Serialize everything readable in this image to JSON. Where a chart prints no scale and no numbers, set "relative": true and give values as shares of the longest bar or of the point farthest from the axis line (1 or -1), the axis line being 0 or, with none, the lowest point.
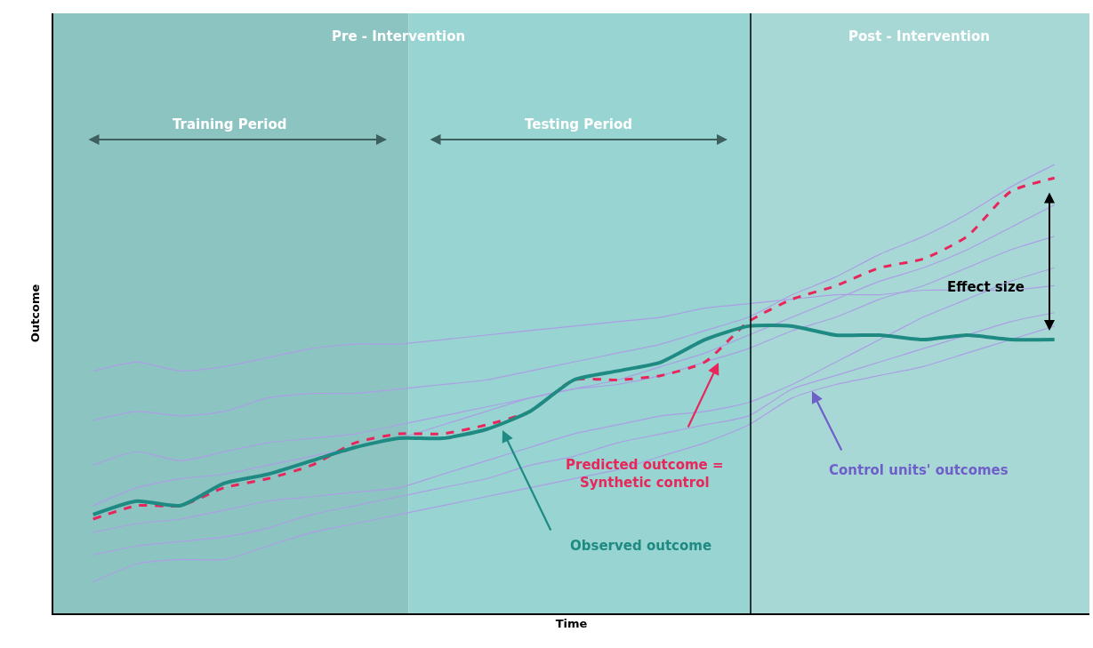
{
  "chart_data": {
    "type": "line",
    "relative": true,
    "xlabel": "Time",
    "ylabel": "Outcome",
    "categories": [
      null,
      null,
      null,
      null,
      null,
      null,
      null,
      null,
      null,
      null,
      null,
      null,
      null,
      null,
      null,
      null,
      null,
      null,
      null,
      null,
      null,
      null,
      null
    ],
    "series": [
      {
        "color": "#ab9fe4",
        "values": [
          0.54,
          0.56,
          0.54,
          0.55,
          0.57,
          0.59,
          0.6,
          0.6,
          0.61,
          0.62,
          0.63,
          0.64,
          0.65,
          0.66,
          0.68,
          0.69,
          0.7,
          0.71,
          0.71,
          0.72,
          0.72,
          0.72,
          0.73
        ]
      },
      {
        "color": "#ab9fe4",
        "values": [
          0.43,
          0.45,
          0.44,
          0.45,
          0.48,
          0.49,
          0.49,
          0.5,
          0.51,
          0.52,
          0.54,
          0.56,
          0.58,
          0.6,
          0.63,
          0.66,
          0.71,
          0.75,
          0.8,
          0.84,
          0.89,
          0.95,
          1
        ]
      },
      {
        "color": "#ab9fe4",
        "values": [
          0.33,
          0.36,
          0.34,
          0.36,
          0.38,
          0.39,
          0.4,
          0.42,
          0.44,
          0.46,
          0.48,
          0.5,
          0.52,
          0.55,
          0.58,
          0.62,
          0.66,
          0.7,
          0.74,
          0.77,
          0.81,
          0.86,
          0.91
        ]
      },
      {
        "color": "#ab9fe4",
        "values": [
          0.24,
          0.28,
          0.3,
          0.31,
          0.33,
          0.35,
          0.37,
          0.39,
          0.42,
          0.45,
          0.48,
          0.5,
          0.51,
          0.53,
          0.56,
          0.59,
          0.63,
          0.66,
          0.7,
          0.73,
          0.77,
          0.81,
          0.84
        ]
      },
      {
        "color": "#ab9fe4",
        "values": [
          0.18,
          0.2,
          0.21,
          0.23,
          0.25,
          0.26,
          0.27,
          0.28,
          0.31,
          0.34,
          0.37,
          0.4,
          0.42,
          0.44,
          0.45,
          0.47,
          0.51,
          0.56,
          0.61,
          0.66,
          0.7,
          0.74,
          0.77
        ]
      },
      {
        "color": "#ab9fe4",
        "values": [
          0.13,
          0.15,
          0.16,
          0.17,
          0.19,
          0.22,
          0.24,
          0.26,
          0.28,
          0.3,
          0.33,
          0.35,
          0.38,
          0.4,
          0.42,
          0.44,
          0.5,
          0.53,
          0.56,
          0.59,
          0.62,
          0.65,
          0.67
        ]
      },
      {
        "color": "#ab9fe4",
        "values": [
          0.07,
          0.11,
          0.12,
          0.12,
          0.15,
          0.18,
          0.2,
          0.22,
          0.24,
          0.26,
          0.28,
          0.3,
          0.32,
          0.35,
          0.38,
          0.42,
          0.48,
          0.51,
          0.53,
          0.55,
          0.58,
          0.61,
          0.64
        ]
      },
      {
        "color": "#e8265a",
        "line_style": "dashed",
        "values": [
          0.21,
          0.24,
          0.24,
          0.28,
          0.3,
          0.33,
          0.38,
          0.4,
          0.4,
          0.42,
          0.45,
          0.52,
          0.52,
          0.53,
          0.56,
          0.65,
          0.7,
          0.73,
          0.77,
          0.79,
          0.84,
          0.94,
          0.97
        ]
      },
      {
        "color": "#1e8a82",
        "line_style": "solid",
        "values": [
          0.22,
          0.25,
          0.24,
          0.29,
          0.31,
          0.34,
          0.37,
          0.39,
          0.39,
          0.41,
          0.45,
          0.52,
          0.54,
          0.56,
          0.61,
          0.64,
          0.64,
          0.62,
          0.62,
          0.61,
          0.62,
          0.61,
          0.61
        ]
      }
    ],
    "annotations": [
      "Pre - Intervention",
      "Post - Intervention",
      "Training Period",
      "Testing Period",
      "Predicted outcome =\nSynthetic control",
      "Observed outcome",
      "Control units' outcomes",
      "Effect size"
    ],
    "tick_labels": false
  }
}
